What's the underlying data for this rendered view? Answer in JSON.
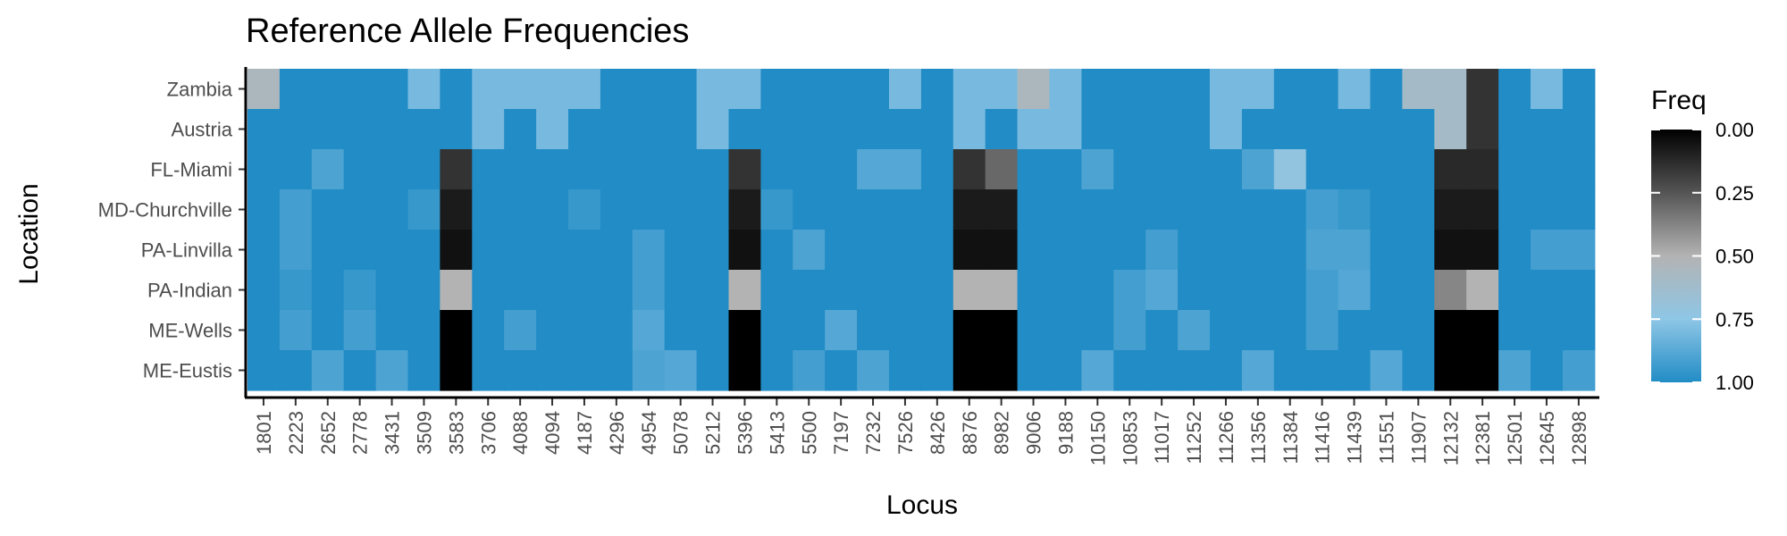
{
  "chart_data": {
    "type": "heatmap",
    "title": "Reference Allele Frequencies",
    "xlabel": "Locus",
    "ylabel": "Location",
    "x": [
      "1801",
      "2223",
      "2652",
      "2778",
      "3431",
      "3509",
      "3583",
      "3706",
      "4088",
      "4094",
      "4187",
      "4296",
      "4954",
      "5078",
      "5212",
      "5396",
      "5413",
      "5500",
      "7197",
      "7232",
      "7526",
      "8426",
      "8876",
      "8982",
      "9006",
      "9188",
      "10150",
      "10853",
      "11017",
      "11252",
      "11266",
      "11356",
      "11384",
      "11416",
      "11439",
      "11551",
      "11907",
      "12132",
      "12381",
      "12501",
      "12645",
      "12898"
    ],
    "y": [
      "Zambia",
      "Austria",
      "FL-Miami",
      "MD-Churchville",
      "PA-Linvilla",
      "PA-Indian",
      "ME-Wells",
      "ME-Eustis"
    ],
    "values": [
      [
        0.55,
        1,
        1,
        1,
        1,
        0.8,
        1,
        0.8,
        0.8,
        0.8,
        0.8,
        1,
        1,
        1,
        0.8,
        0.8,
        1,
        1,
        1,
        1,
        0.8,
        1,
        0.8,
        0.8,
        0.55,
        0.8,
        1,
        1,
        1,
        1,
        0.8,
        0.8,
        1,
        1,
        0.8,
        1,
        0.6,
        0.6,
        0.15,
        1,
        0.8,
        1
      ],
      [
        1,
        1,
        1,
        1,
        1,
        1,
        1,
        0.8,
        1,
        0.8,
        1,
        1,
        1,
        1,
        0.8,
        1,
        1,
        1,
        1,
        1,
        1,
        1,
        0.8,
        1,
        0.8,
        0.8,
        1,
        1,
        1,
        1,
        0.8,
        1,
        1,
        1,
        1,
        1,
        1,
        0.6,
        0.15,
        1,
        1,
        1
      ],
      [
        1,
        1,
        0.9,
        1,
        1,
        1,
        0.15,
        1,
        1,
        1,
        1,
        1,
        1,
        1,
        1,
        0.15,
        1,
        1,
        1,
        0.88,
        0.88,
        1,
        0.15,
        0.3,
        1,
        1,
        0.9,
        1,
        1,
        1,
        1,
        0.9,
        0.72,
        1,
        1,
        1,
        1,
        0.12,
        0.12,
        1,
        1,
        1
      ],
      [
        1,
        0.92,
        1,
        1,
        1,
        0.95,
        0.08,
        1,
        1,
        1,
        0.95,
        1,
        1,
        1,
        1,
        0.08,
        0.95,
        1,
        1,
        1,
        1,
        1,
        0.08,
        0.08,
        1,
        1,
        1,
        1,
        1,
        1,
        1,
        1,
        1,
        0.92,
        0.95,
        1,
        1,
        0.08,
        0.08,
        1,
        1,
        1
      ],
      [
        1,
        0.92,
        1,
        1,
        1,
        1,
        0.05,
        1,
        1,
        1,
        1,
        1,
        0.92,
        1,
        1,
        0.05,
        1,
        0.9,
        1,
        1,
        1,
        1,
        0.05,
        0.05,
        1,
        1,
        1,
        1,
        0.92,
        1,
        1,
        1,
        1,
        0.9,
        0.9,
        1,
        1,
        0.05,
        0.05,
        1,
        0.92,
        0.92
      ],
      [
        1,
        0.95,
        1,
        0.95,
        1,
        1,
        0.5,
        1,
        1,
        1,
        1,
        1,
        0.92,
        1,
        1,
        0.5,
        1,
        1,
        1,
        1,
        1,
        1,
        0.5,
        0.5,
        1,
        1,
        1,
        0.92,
        0.88,
        1,
        1,
        1,
        1,
        0.92,
        0.88,
        1,
        1,
        0.38,
        0.5,
        1,
        1,
        1
      ],
      [
        1,
        0.92,
        1,
        0.92,
        1,
        1,
        0,
        1,
        0.92,
        1,
        1,
        1,
        0.88,
        1,
        1,
        0,
        1,
        1,
        0.88,
        1,
        1,
        1,
        0,
        0,
        1,
        1,
        1,
        0.92,
        1,
        0.9,
        1,
        1,
        1,
        0.92,
        1,
        1,
        1,
        0,
        0,
        1,
        1,
        1
      ],
      [
        1,
        1,
        0.9,
        1,
        0.9,
        1,
        0,
        1,
        1,
        1,
        1,
        1,
        0.9,
        0.88,
        1,
        0,
        1,
        0.92,
        1,
        0.9,
        1,
        1,
        0,
        0,
        1,
        1,
        0.88,
        1,
        1,
        1,
        1,
        0.88,
        1,
        1,
        1,
        0.88,
        1,
        0,
        0,
        0.9,
        1,
        0.92
      ]
    ],
    "legend": {
      "title": "Freq",
      "ticks": [
        "0.00",
        "0.25",
        "0.50",
        "0.75",
        "1.00"
      ],
      "position": "right",
      "colors": [
        "#000000",
        "#555555",
        "#b3b3b3",
        "#8ec6e6",
        "#218cc5"
      ]
    },
    "grid": false
  }
}
